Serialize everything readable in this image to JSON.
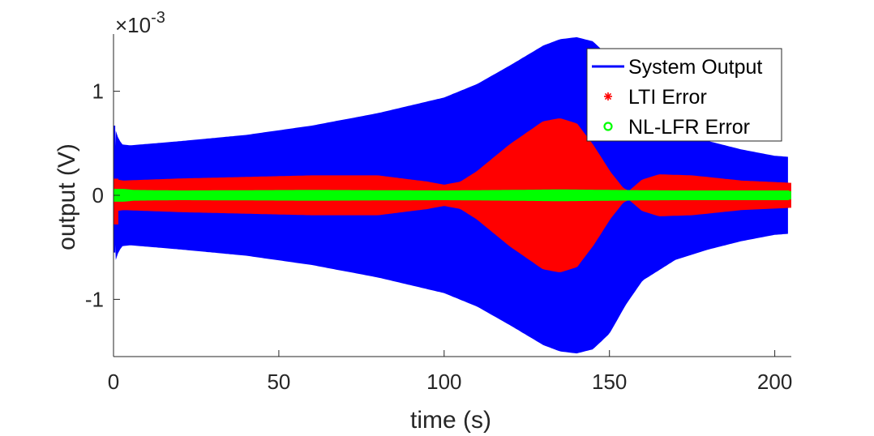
{
  "chart_data": {
    "type": "line",
    "xlabel": "time (s)",
    "ylabel": "output (V)",
    "y_exponent_label": "×10",
    "y_exponent_power": "-3",
    "xlim": [
      0,
      205
    ],
    "ylim": [
      -1.55,
      1.55
    ],
    "xticks": [
      0,
      50,
      100,
      150,
      200
    ],
    "yticks": [
      -1,
      0,
      1
    ],
    "ytick_labels": [
      "-1",
      "0",
      "1"
    ],
    "grid": false,
    "legend_position": "top-right",
    "series": [
      {
        "name": "System Output",
        "color": "#0000ff",
        "marker": "line",
        "envelope": {
          "t": [
            0,
            0.3,
            1.0,
            2.5,
            5,
            20,
            40,
            60,
            80,
            100,
            110,
            120,
            130,
            135,
            140,
            145,
            150,
            155,
            160,
            170,
            180,
            190,
            200,
            204
          ],
          "amp": [
            0.1,
            0.67,
            0.58,
            0.49,
            0.48,
            0.52,
            0.58,
            0.67,
            0.79,
            0.94,
            1.07,
            1.25,
            1.44,
            1.5,
            1.52,
            1.48,
            1.33,
            1.05,
            0.82,
            0.62,
            0.52,
            0.44,
            0.38,
            0.37
          ]
        }
      },
      {
        "name": "LTI Error",
        "color": "#ff0000",
        "marker": "*",
        "envelope": {
          "t": [
            0,
            1,
            3,
            20,
            60,
            80,
            95,
            100,
            105,
            110,
            120,
            130,
            135,
            140,
            145,
            150,
            154,
            156,
            160,
            165,
            175,
            190,
            204
          ],
          "amp": [
            0.14,
            0.14,
            0.13,
            0.15,
            0.18,
            0.18,
            0.12,
            0.09,
            0.12,
            0.22,
            0.48,
            0.7,
            0.73,
            0.68,
            0.47,
            0.22,
            0.06,
            0.03,
            0.14,
            0.19,
            0.18,
            0.13,
            0.11
          ]
        }
      },
      {
        "name": "NL-LFR Error",
        "color": "#00ff00",
        "marker": "o",
        "envelope": {
          "t": [
            0,
            3,
            6,
            20,
            60,
            100,
            120,
            135,
            150,
            170,
            204
          ],
          "amp": [
            0.05,
            0.05,
            0.04,
            0.035,
            0.04,
            0.035,
            0.04,
            0.045,
            0.04,
            0.035,
            0.035
          ]
        }
      }
    ]
  }
}
